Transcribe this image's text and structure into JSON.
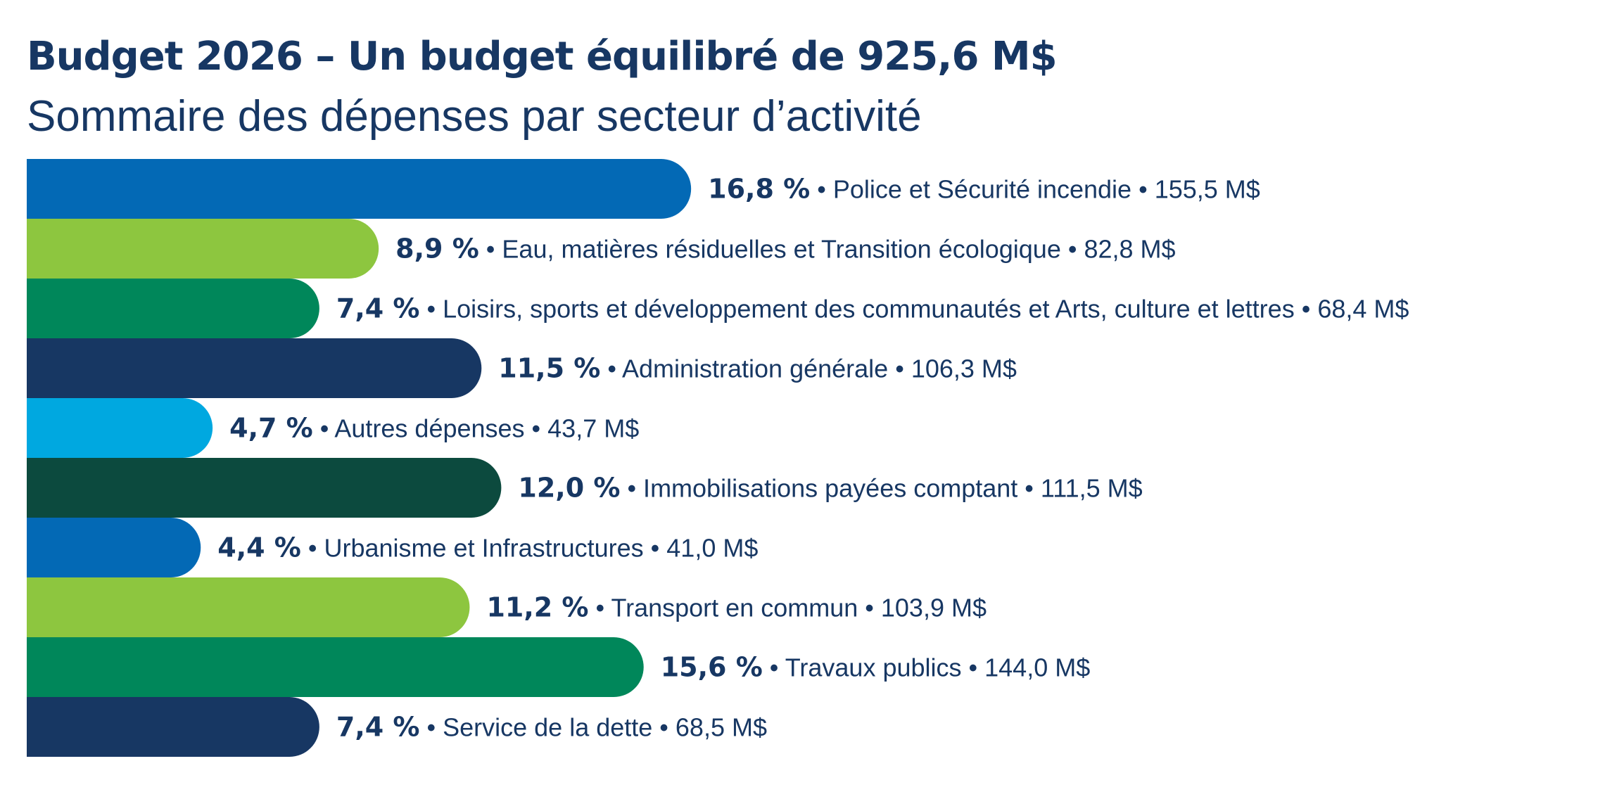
{
  "chart_data": {
    "type": "bar",
    "orientation": "horizontal",
    "title": "Budget 2026 – Un budget équilibré de 925,6 M$",
    "subtitle": "Sommaire des dépenses par secteur d’activité",
    "separator": " • ",
    "categories": [
      "Police et Sécurité incendie",
      "Eau, matières résiduelles et Transition écologique",
      "Loisirs, sports et développement des communautés et Arts, culture et lettres",
      "Administration générale",
      "Autres dépenses",
      "Immobilisations payées comptant",
      "Urbanisme et Infrastructures",
      "Transport en commun",
      "Travaux publics",
      "Service de la dette"
    ],
    "values": [
      16.8,
      8.9,
      7.4,
      11.5,
      4.7,
      12.0,
      4.4,
      11.2,
      15.6,
      7.4
    ],
    "percent_labels": [
      "16,8 %",
      "8,9 %",
      "7,4 %",
      "11,5 %",
      "4,7 %",
      "12,0 %",
      "4,4 %",
      "11,2 %",
      "15,6 %",
      "7,4 %"
    ],
    "amount_labels": [
      "155,5 M$",
      "82,8 M$",
      "68,4 M$",
      "106,3 M$",
      "43,7 M$",
      "111,5 M$",
      "41,0 M$",
      "103,9 M$",
      "144,0 M$",
      "68,5 M$"
    ],
    "colors": [
      "#0369b5",
      "#8dc63f",
      "#00875a",
      "#173763",
      "#00a8e0",
      "#0c4a3e",
      "#0369b5",
      "#8dc63f",
      "#00875a",
      "#173763"
    ],
    "text_color": "#173763",
    "grid": false,
    "legend": "none"
  }
}
